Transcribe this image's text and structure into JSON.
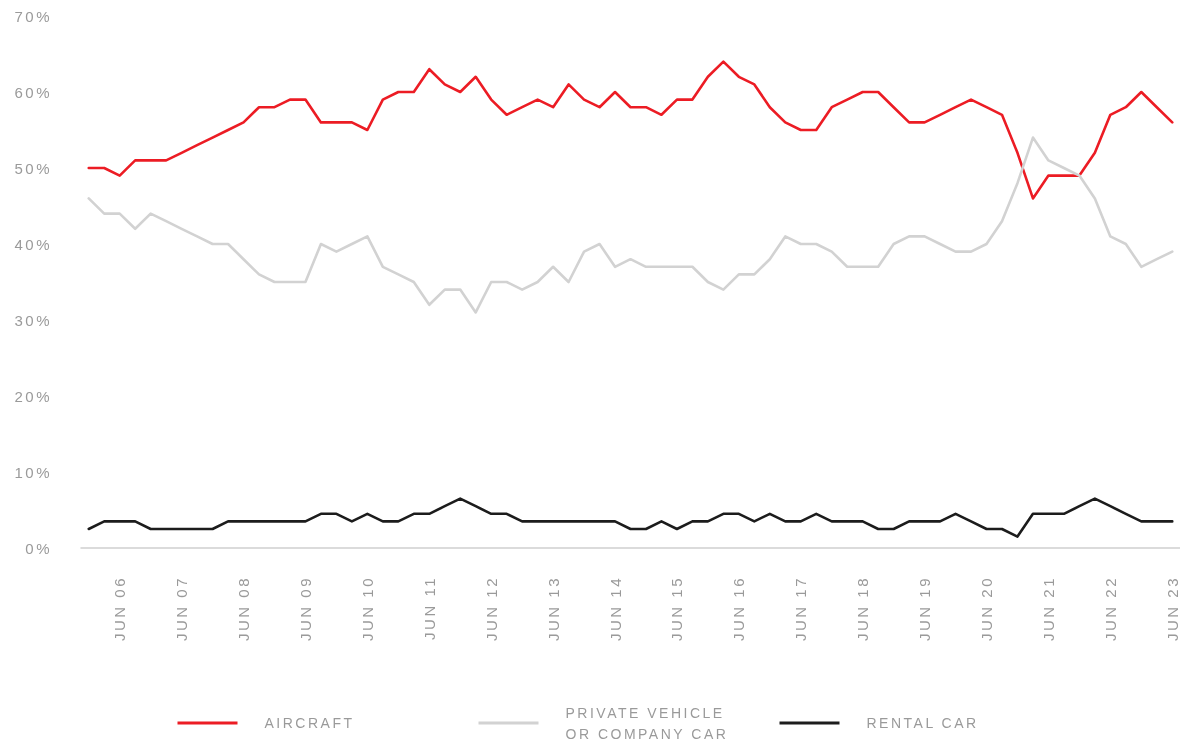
{
  "chart_data": {
    "type": "line",
    "categories": [
      null,
      null,
      "JUN 06",
      null,
      null,
      null,
      "JUN 07",
      null,
      null,
      null,
      "JUN 08",
      null,
      null,
      null,
      "JUN 09",
      null,
      null,
      null,
      "JUN 10",
      null,
      null,
      null,
      "JUN 11",
      null,
      null,
      null,
      "JUN 12",
      null,
      null,
      null,
      "JUN 13",
      null,
      null,
      null,
      "JUN 14",
      null,
      null,
      null,
      "JUN 15",
      null,
      null,
      null,
      "JUN 16",
      null,
      null,
      null,
      "JUN 17",
      null,
      null,
      null,
      "JUN 18",
      null,
      null,
      null,
      "JUN 19",
      null,
      null,
      null,
      "JUN 20",
      null,
      null,
      null,
      "JUN 21",
      null,
      null,
      null,
      "JUN 22",
      null,
      null,
      null,
      "JUN 23"
    ],
    "series": [
      {
        "name": "AIRCRAFT",
        "color": "#ec1c24",
        "values": [
          50,
          50,
          49,
          51,
          51,
          51,
          52,
          53,
          54,
          55,
          56,
          58,
          58,
          59,
          59,
          56,
          56,
          56,
          55,
          59,
          60,
          60,
          63,
          61,
          60,
          62,
          59,
          57,
          58,
          59,
          58,
          61,
          59,
          58,
          60,
          58,
          58,
          57,
          59,
          59,
          62,
          64,
          62,
          61,
          58,
          56,
          55,
          55,
          58,
          59,
          60,
          60,
          58,
          56,
          56,
          57,
          58,
          59,
          58,
          57,
          52,
          46,
          49,
          49,
          49,
          52,
          57,
          58,
          60,
          58,
          56
        ]
      },
      {
        "name": "PRIVATE VEHICLE OR COMPANY CAR",
        "color": "#d2d2d2",
        "values": [
          46,
          44,
          44,
          42,
          44,
          43,
          42,
          41,
          40,
          40,
          38,
          36,
          35,
          35,
          35,
          40,
          39,
          40,
          41,
          37,
          36,
          35,
          32,
          34,
          34,
          31,
          35,
          35,
          34,
          35,
          37,
          35,
          39,
          40,
          37,
          38,
          37,
          37,
          37,
          37,
          35,
          34,
          36,
          36,
          38,
          41,
          40,
          40,
          39,
          37,
          37,
          37,
          40,
          41,
          41,
          40,
          39,
          39,
          40,
          43,
          48,
          54,
          51,
          50,
          49,
          46,
          41,
          40,
          37,
          38,
          39
        ]
      },
      {
        "name": "RENTAL CAR",
        "color": "#1c1c1c",
        "values": [
          2.5,
          3.5,
          3.5,
          3.5,
          2.5,
          2.5,
          2.5,
          2.5,
          2.5,
          3.5,
          3.5,
          3.5,
          3.5,
          3.5,
          3.5,
          4.5,
          4.5,
          3.5,
          4.5,
          3.5,
          3.5,
          4.5,
          4.5,
          5.5,
          6.5,
          5.5,
          4.5,
          4.5,
          3.5,
          3.5,
          3.5,
          3.5,
          3.5,
          3.5,
          3.5,
          2.5,
          2.5,
          3.5,
          2.5,
          3.5,
          3.5,
          4.5,
          4.5,
          3.5,
          4.5,
          3.5,
          3.5,
          4.5,
          3.5,
          3.5,
          3.5,
          2.5,
          2.5,
          3.5,
          3.5,
          3.5,
          4.5,
          3.5,
          2.5,
          2.5,
          1.5,
          4.5,
          4.5,
          4.5,
          5.5,
          6.5,
          5.5,
          4.5,
          3.5,
          3.5,
          3.5
        ]
      }
    ],
    "ylim": [
      0,
      70
    ],
    "yticks": [
      {
        "value": 0,
        "label": "0%"
      },
      {
        "value": 10,
        "label": "10%"
      },
      {
        "value": 20,
        "label": "20%"
      },
      {
        "value": 30,
        "label": "30%"
      },
      {
        "value": 40,
        "label": "40%"
      },
      {
        "value": 50,
        "label": "50%"
      },
      {
        "value": 60,
        "label": "60%"
      },
      {
        "value": 70,
        "label": "70%"
      }
    ],
    "grid": false,
    "legend": "bottom",
    "marker": "none",
    "line_style": "solid"
  }
}
